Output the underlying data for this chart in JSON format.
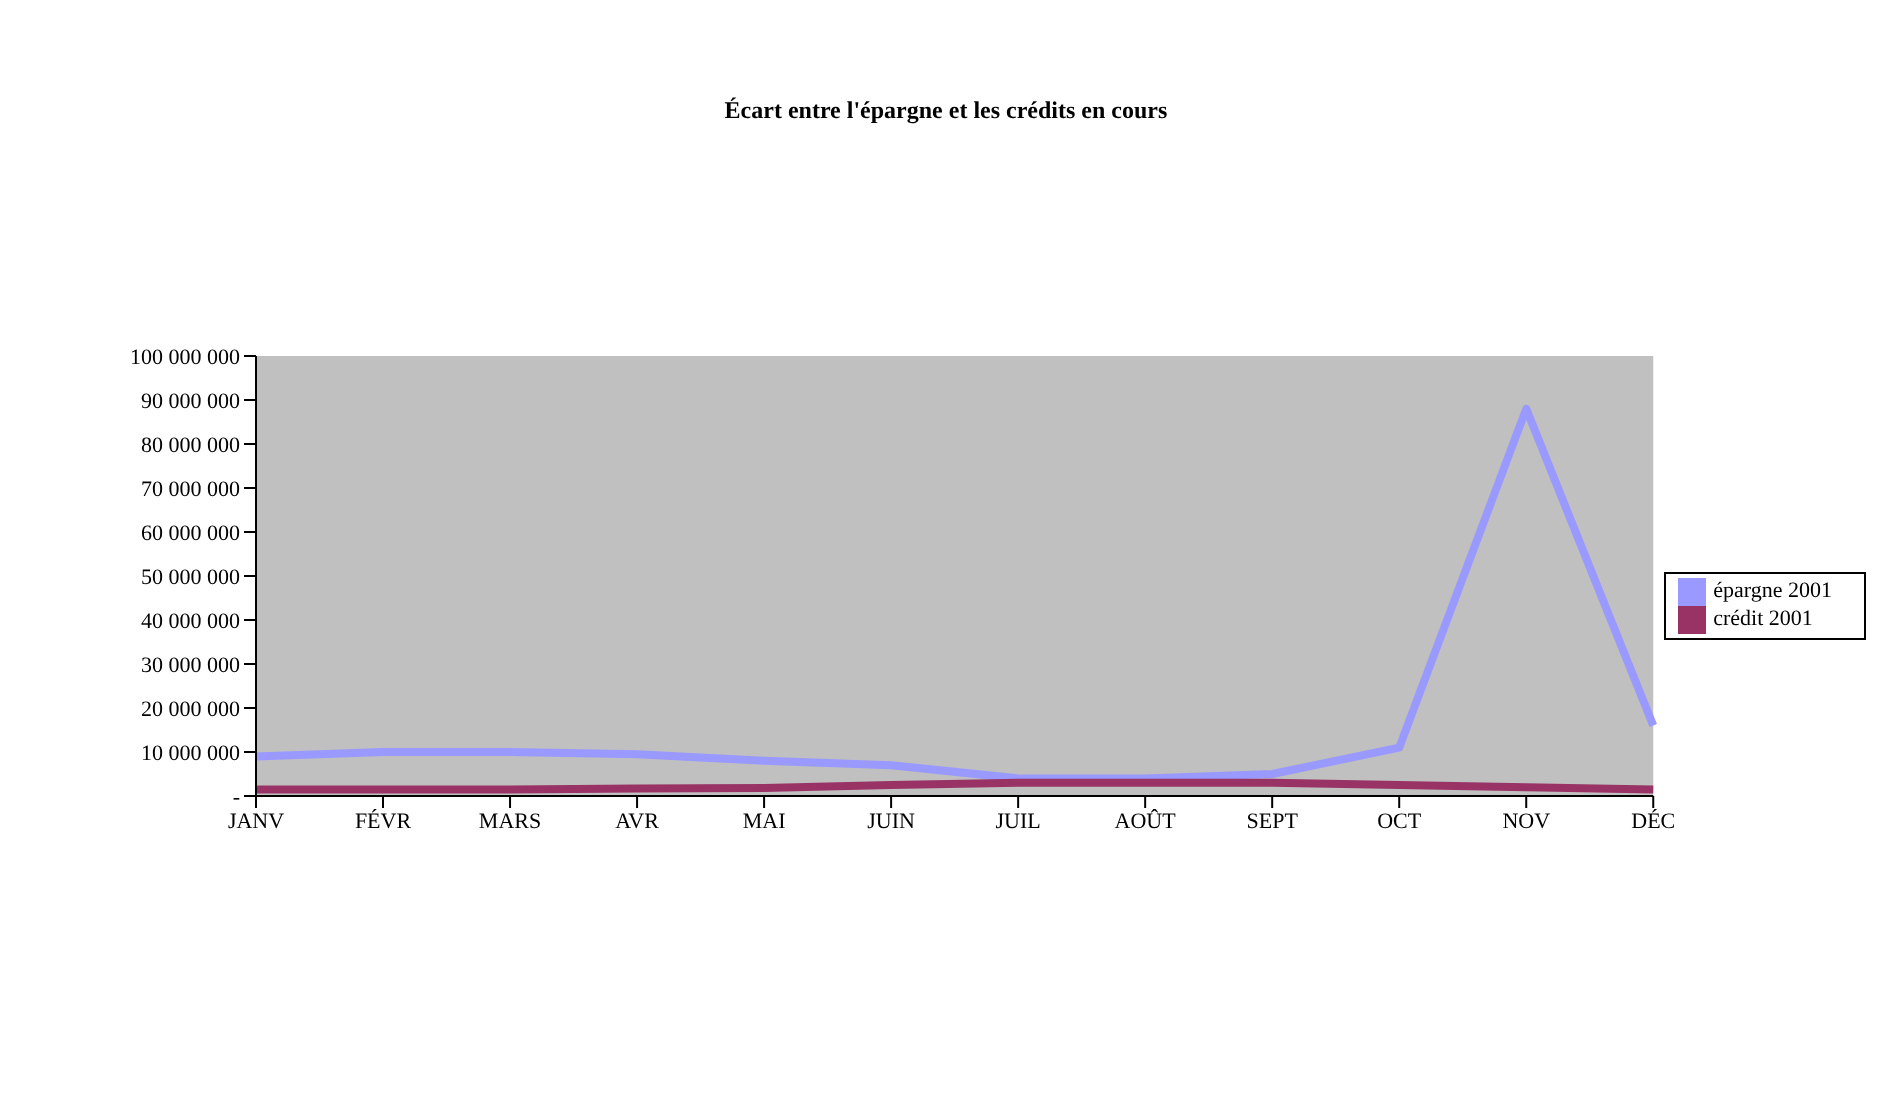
{
  "chart_data": {
    "type": "line",
    "title": "Écart entre l'épargne et les crédits en cours",
    "categories": [
      "JANV",
      "FÉVR",
      "MARS",
      "AVR",
      "MAI",
      "JUIN",
      "JUIL",
      "AOÛT",
      "SEPT",
      "OCT",
      "NOV",
      "DÉC"
    ],
    "series": [
      {
        "name": "épargne 2001",
        "color": "#9999ff",
        "values": [
          9000000,
          10000000,
          10000000,
          9500000,
          8000000,
          7000000,
          4000000,
          4000000,
          5000000,
          11000000,
          88000000,
          16000000
        ]
      },
      {
        "name": "crédit 2001",
        "color": "#993366",
        "values": [
          1500000,
          1500000,
          1500000,
          1700000,
          1800000,
          2500000,
          3000000,
          3000000,
          3000000,
          2500000,
          2000000,
          1500000
        ]
      }
    ],
    "ylim": [
      0,
      100000000
    ],
    "yticks": [
      {
        "value": 0,
        "label": "-"
      },
      {
        "value": 10000000,
        "label": "10 000 000"
      },
      {
        "value": 20000000,
        "label": "20 000 000"
      },
      {
        "value": 30000000,
        "label": "30 000 000"
      },
      {
        "value": 40000000,
        "label": "40 000 000"
      },
      {
        "value": 50000000,
        "label": "50 000 000"
      },
      {
        "value": 60000000,
        "label": "60 000 000"
      },
      {
        "value": 70000000,
        "label": "70 000 000"
      },
      {
        "value": 80000000,
        "label": "80 000 000"
      },
      {
        "value": 90000000,
        "label": "90 000 000"
      },
      {
        "value": 100000000,
        "label": "100 000 000"
      }
    ],
    "legend": "right",
    "marker": "none",
    "line_style": "solid"
  }
}
